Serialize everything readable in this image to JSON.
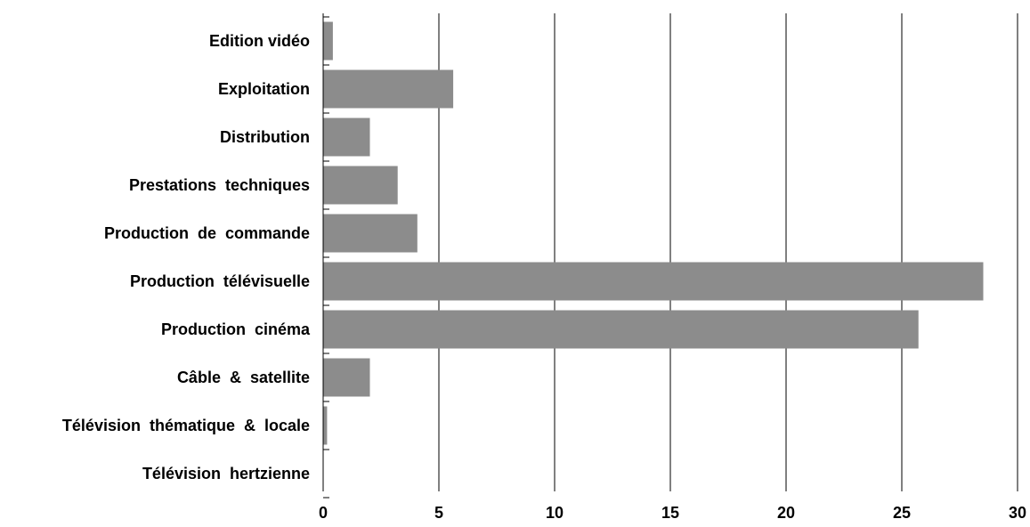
{
  "chart_data": {
    "type": "bar",
    "orientation": "horizontal",
    "categories": [
      "Edition vidéo",
      "Exploitation",
      "Distribution",
      "Prestations  techniques",
      "Production  de  commande",
      "Production  télévisuelle",
      "Production  cinéma",
      "Câble  &  satellite",
      "Télévision  thématique  &  locale",
      "Télévision  hertzienne"
    ],
    "values": [
      0.4,
      5.6,
      2.0,
      3.2,
      4.05,
      28.5,
      25.7,
      2.0,
      0.15,
      0
    ],
    "xlim": [
      0,
      30
    ],
    "xticks": [
      "0",
      "5",
      "10",
      "15",
      "20",
      "25",
      "30"
    ],
    "grid": "vertical",
    "bar_color": "#8c8c8c",
    "title": "",
    "xlabel": "",
    "ylabel": ""
  }
}
